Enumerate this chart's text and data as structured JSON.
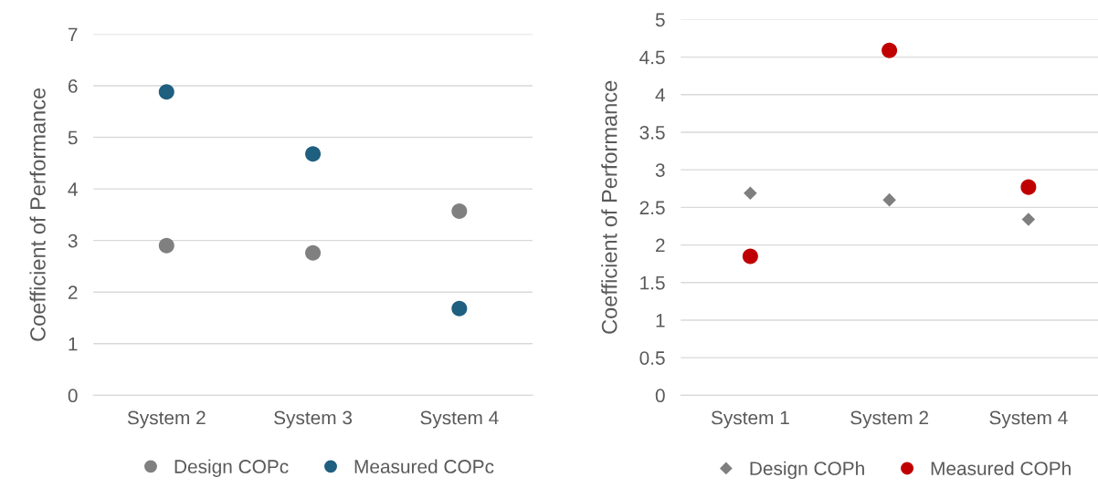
{
  "chart_data": [
    {
      "type": "scatter",
      "ylabel": "Coefficient of Performance",
      "categories": [
        "System 2",
        "System 3",
        "System 4"
      ],
      "ylim": [
        0,
        7
      ],
      "yticks": [
        0,
        1,
        2,
        3,
        4,
        5,
        6,
        7
      ],
      "grid": "y",
      "legend": "bottom",
      "series": [
        {
          "name": "Design COPc",
          "color": "#808080",
          "marker": "circle",
          "values": [
            2.9,
            2.76,
            3.57
          ]
        },
        {
          "name": "Measured COPc",
          "color": "#1f5f7f",
          "marker": "circle",
          "values": [
            5.88,
            4.68,
            1.68
          ]
        }
      ]
    },
    {
      "type": "scatter",
      "ylabel": "Coefficient of Performance",
      "categories": [
        "System 1",
        "System 2",
        "System 4"
      ],
      "ylim": [
        0,
        5
      ],
      "yticks": [
        0,
        0.5,
        1,
        1.5,
        2,
        2.5,
        3,
        3.5,
        4,
        4.5,
        5
      ],
      "grid": "y",
      "legend": "bottom",
      "series": [
        {
          "name": "Design COPh",
          "color": "#7f7f7f",
          "marker": "diamond",
          "values": [
            2.69,
            2.6,
            2.34
          ]
        },
        {
          "name": "Measured COPh",
          "color": "#c00000",
          "marker": "circle",
          "values": [
            1.85,
            4.59,
            2.77
          ]
        }
      ]
    }
  ]
}
